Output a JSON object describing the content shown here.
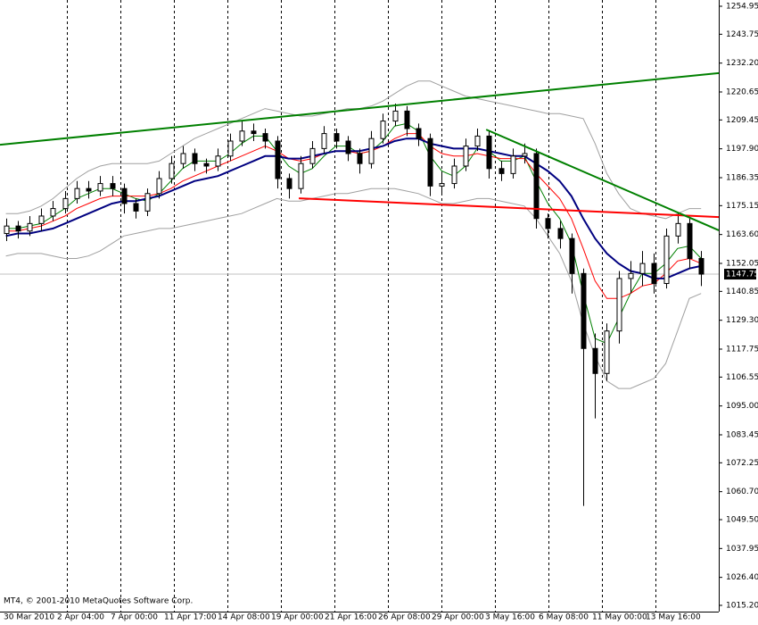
{
  "chart_data": {
    "type": "candlestick",
    "footer": "MT4, © 2001-2010 MetaQuotes Software Corp.",
    "x_labels": [
      "30 Mar 2010",
      "2 Apr 04:00",
      "7 Apr 00:00",
      "11 Apr 17:00",
      "14 Apr 08:00",
      "19 Apr 00:00",
      "21 Apr 16:00",
      "26 Apr 08:00",
      "29 Apr 00:00",
      "3 May 16:00",
      "6 May 08:00",
      "11 May 00:00",
      "13 May 16:00"
    ],
    "xlim": [
      -0.5,
      60.5
    ],
    "ylim": [
      1012.7,
      1257.45
    ],
    "yticks": [
      1254.95,
      1243.75,
      {
        "value": 1232.2,
        "label": "1232.20"
      },
      1220.65,
      1209.45,
      {
        "value": 1197.9,
        "label": "1197.90"
      },
      1186.35,
      1175.15,
      {
        "value": 1163.6,
        "label": "1163.60"
      },
      1152.05,
      1140.85,
      {
        "value": 1129.3,
        "label": "1129.30"
      },
      1117.75,
      1106.55,
      {
        "value": 1095,
        "label": "1095.00"
      },
      1083.45,
      1072.25,
      {
        "value": 1060.7,
        "label": "1060.70"
      },
      {
        "value": 1049.5,
        "label": "1049.50"
      },
      1037.95,
      {
        "value": 1026.4,
        "label": "1026.40"
      },
      {
        "value": 1015.2,
        "label": "1015.20"
      }
    ],
    "last_price": 1147.75,
    "ohlc": {
      "open": [
        1164,
        1167,
        1165,
        1168,
        1171,
        1174,
        1178,
        1182,
        1181,
        1184,
        1182,
        1176,
        1173,
        1180,
        1186,
        1192,
        1196,
        1192,
        1191,
        1195,
        1201,
        1205,
        1204,
        1201,
        1186,
        1182,
        1192,
        1198,
        1204,
        1201,
        1196,
        1192,
        1202,
        1209,
        1213,
        1206,
        1202,
        1183,
        1184,
        1191,
        1199,
        1203,
        1190,
        1188,
        1195,
        1196,
        1170,
        1166,
        1162,
        1148,
        1118,
        1108,
        1125,
        1146,
        1148,
        1152,
        1144,
        1163,
        1168,
        1154
      ],
      "high": [
        1170,
        1169,
        1171,
        1174,
        1177,
        1181,
        1185,
        1185,
        1187,
        1187,
        1184,
        1178,
        1182,
        1189,
        1195,
        1199,
        1198,
        1194,
        1198,
        1204,
        1209,
        1208,
        1206,
        1203,
        1188,
        1195,
        1201,
        1207,
        1206,
        1203,
        1198,
        1205,
        1212,
        1216,
        1215,
        1208,
        1204,
        1188,
        1194,
        1202,
        1206,
        1205,
        1193,
        1198,
        1200,
        1198,
        1172,
        1169,
        1164,
        1150,
        1124,
        1128,
        1149,
        1153,
        1157,
        1156,
        1166,
        1172,
        1170,
        1157
      ],
      "low": [
        1161,
        1162,
        1163,
        1165,
        1169,
        1172,
        1176,
        1178,
        1179,
        1179,
        1172,
        1170,
        1171,
        1178,
        1184,
        1190,
        1189,
        1188,
        1189,
        1193,
        1199,
        1201,
        1198,
        1182,
        1178,
        1180,
        1190,
        1196,
        1198,
        1193,
        1188,
        1190,
        1200,
        1207,
        1203,
        1199,
        1179,
        1180,
        1182,
        1189,
        1197,
        1186,
        1185,
        1186,
        1192,
        1166,
        1162,
        1158,
        1140,
        1055,
        1090,
        1105,
        1120,
        1140,
        1143,
        1140,
        1142,
        1160,
        1150,
        1143
      ],
      "close": [
        1167,
        1165,
        1168,
        1171,
        1174,
        1178,
        1182,
        1181,
        1184,
        1182,
        1176,
        1173,
        1180,
        1186,
        1192,
        1196,
        1192,
        1191,
        1195,
        1201,
        1205,
        1204,
        1201,
        1186,
        1182,
        1192,
        1198,
        1204,
        1201,
        1196,
        1192,
        1202,
        1209,
        1213,
        1206,
        1202,
        1183,
        1184,
        1191,
        1199,
        1203,
        1190,
        1188,
        1195,
        1196,
        1170,
        1166,
        1162,
        1148,
        1118,
        1108,
        1125,
        1146,
        1148,
        1152,
        1144,
        1163,
        1168,
        1154,
        1147.75
      ]
    },
    "indicators": [
      {
        "color": "#a0a0a0",
        "width": 1,
        "values": [
          1172,
          1172,
          1173,
          1175,
          1178,
          1182,
          1186,
          1189,
          1191,
          1192,
          1192,
          1192,
          1192,
          1193,
          1196,
          1199,
          1202,
          1204,
          1206,
          1208,
          1210,
          1212,
          1214,
          1213,
          1212,
          1211,
          1211,
          1212,
          1213,
          1214,
          1214,
          1215,
          1217,
          1220,
          1223,
          1225,
          1225,
          1223,
          1221,
          1219,
          1218,
          1217,
          1216,
          1215,
          1214,
          1213,
          1212,
          1212,
          1211,
          1210,
          1200,
          1188,
          1180,
          1174,
          1172,
          1171,
          1170,
          1172,
          1174,
          1174
        ]
      },
      {
        "color": "#a0a0a0",
        "width": 1,
        "values": [
          1155,
          1156,
          1156,
          1156,
          1155,
          1154,
          1154,
          1155,
          1157,
          1160,
          1163,
          1164,
          1165,
          1166,
          1166,
          1167,
          1168,
          1169,
          1170,
          1171,
          1172,
          1174,
          1176,
          1178,
          1177,
          1177,
          1178,
          1179,
          1180,
          1180,
          1181,
          1182,
          1182,
          1182,
          1181,
          1180,
          1178,
          1176,
          1176,
          1177,
          1178,
          1178,
          1177,
          1176,
          1175,
          1170,
          1163,
          1156,
          1145,
          1128,
          1115,
          1105,
          1102,
          1102,
          1104,
          1106,
          1112,
          1125,
          1138,
          1140
        ]
      },
      {
        "color": "#008000",
        "width": 1,
        "values": [
          1166,
          1166,
          1167,
          1168,
          1171,
          1174,
          1178,
          1180,
          1182,
          1182,
          1180,
          1178,
          1177,
          1180,
          1185,
          1190,
          1193,
          1193,
          1193,
          1196,
          1200,
          1203,
          1203,
          1197,
          1191,
          1188,
          1190,
          1195,
          1199,
          1199,
          1196,
          1197,
          1201,
          1207,
          1208,
          1205,
          1195,
          1189,
          1187,
          1191,
          1198,
          1197,
          1193,
          1193,
          1195,
          1185,
          1176,
          1170,
          1160,
          1140,
          1122,
          1120,
          1130,
          1140,
          1148,
          1148,
          1152,
          1158,
          1159,
          1154
        ]
      },
      {
        "color": "#ff0000",
        "width": 1,
        "values": [
          1165,
          1165,
          1166,
          1167,
          1169,
          1171,
          1174,
          1176,
          1178,
          1179,
          1179,
          1179,
          1179,
          1180,
          1182,
          1185,
          1187,
          1189,
          1191,
          1193,
          1195,
          1197,
          1199,
          1197,
          1194,
          1193,
          1194,
          1196,
          1197,
          1197,
          1196,
          1197,
          1199,
          1202,
          1204,
          1204,
          1199,
          1196,
          1195,
          1195,
          1196,
          1195,
          1194,
          1194,
          1194,
          1188,
          1183,
          1178,
          1170,
          1158,
          1145,
          1138,
          1138,
          1140,
          1143,
          1144,
          1148,
          1153,
          1154,
          1152
        ]
      },
      {
        "color": "#000080",
        "width": 2,
        "values": [
          1163,
          1164,
          1164,
          1165,
          1166,
          1168,
          1170,
          1172,
          1174,
          1176,
          1177,
          1177,
          1178,
          1179,
          1181,
          1183,
          1185,
          1186,
          1187,
          1189,
          1191,
          1193,
          1195,
          1195,
          1194,
          1194,
          1195,
          1196,
          1197,
          1197,
          1197,
          1198,
          1199,
          1201,
          1202,
          1202,
          1200,
          1199,
          1198,
          1198,
          1198,
          1197,
          1196,
          1195,
          1195,
          1192,
          1189,
          1185,
          1179,
          1170,
          1162,
          1156,
          1152,
          1149,
          1148,
          1146,
          1146,
          1148,
          1150,
          1151
        ]
      }
    ],
    "trendlines": [
      {
        "color": "#008000",
        "x": [
          -0.5,
          60.5
        ],
        "values": [
          1199.5,
          1228.2
        ]
      },
      {
        "color": "#ff0000",
        "x": [
          24.86,
          60.5
        ],
        "values": [
          1178.1,
          1170.6
        ]
      },
      {
        "color": "#008000",
        "x": [
          40.76,
          60.5
        ],
        "values": [
          1205.6,
          1165.3
        ]
      }
    ]
  }
}
